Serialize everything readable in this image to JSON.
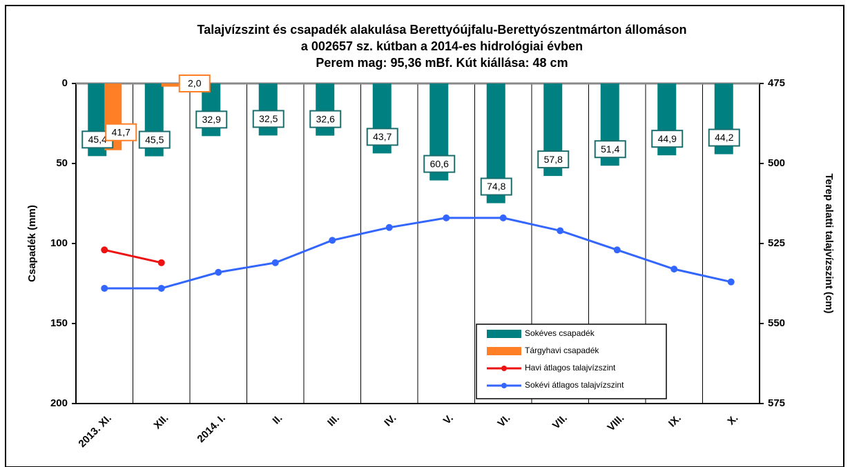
{
  "chart_data": {
    "type": "bar",
    "title": [
      "Talajvízszint és csapadék alakulása Berettyóújfalu-Berettyószentmárton állomáson",
      "a 002657 sz. kútban a 2014-es hidrológiai évben",
      "Perem mag: 95,36 mBf. Kút kiállása: 48 cm"
    ],
    "ylabel": "Csapadék (mm)",
    "y2label": "Terep alatti talajvízszint (cm)",
    "categories": [
      "2013. XI.",
      "XII.",
      "2014. I.",
      "II.",
      "III.",
      "IV.",
      "V.",
      "VI.",
      "VII.",
      "VIII.",
      "IX.",
      "X."
    ],
    "ylim": [
      0,
      200
    ],
    "yticks": [
      0,
      50,
      100,
      150,
      200
    ],
    "y_reversed": true,
    "y2lim": [
      475,
      575
    ],
    "y2ticks": [
      475,
      500,
      525,
      550,
      575
    ],
    "y2_reversed": true,
    "grid": true,
    "series": [
      {
        "name": "Sokéves csapadék",
        "type": "bar",
        "color": "#008080",
        "values": [
          45.4,
          45.5,
          32.9,
          32.5,
          32.6,
          43.7,
          60.6,
          74.8,
          57.8,
          51.4,
          44.9,
          44.2
        ],
        "value_labels": [
          "45,4",
          "45,5",
          "32,9",
          "32,5",
          "32,6",
          "43,7",
          "60,6",
          "74,8",
          "57,8",
          "51,4",
          "44,9",
          "44,2"
        ]
      },
      {
        "name": "Tárgyhavi csapadék",
        "type": "bar",
        "color": "#ff7f27",
        "values": [
          41.7,
          2.0,
          null,
          null,
          null,
          null,
          null,
          null,
          null,
          null,
          null,
          null
        ],
        "value_labels": [
          "41,7",
          "2,0",
          null,
          null,
          null,
          null,
          null,
          null,
          null,
          null,
          null,
          null
        ]
      },
      {
        "name": "Havi átlagos talajvízszint",
        "type": "line",
        "axis": "y2",
        "color": "#ee1111",
        "values": [
          527,
          531,
          null,
          null,
          null,
          null,
          null,
          null,
          null,
          null,
          null,
          null
        ]
      },
      {
        "name": "Sokévi átlagos talajvízszint",
        "type": "line",
        "axis": "y2",
        "color": "#3366ff",
        "values": [
          539,
          539,
          534,
          531,
          524,
          520,
          517,
          517,
          521,
          527,
          533,
          537
        ]
      }
    ]
  }
}
